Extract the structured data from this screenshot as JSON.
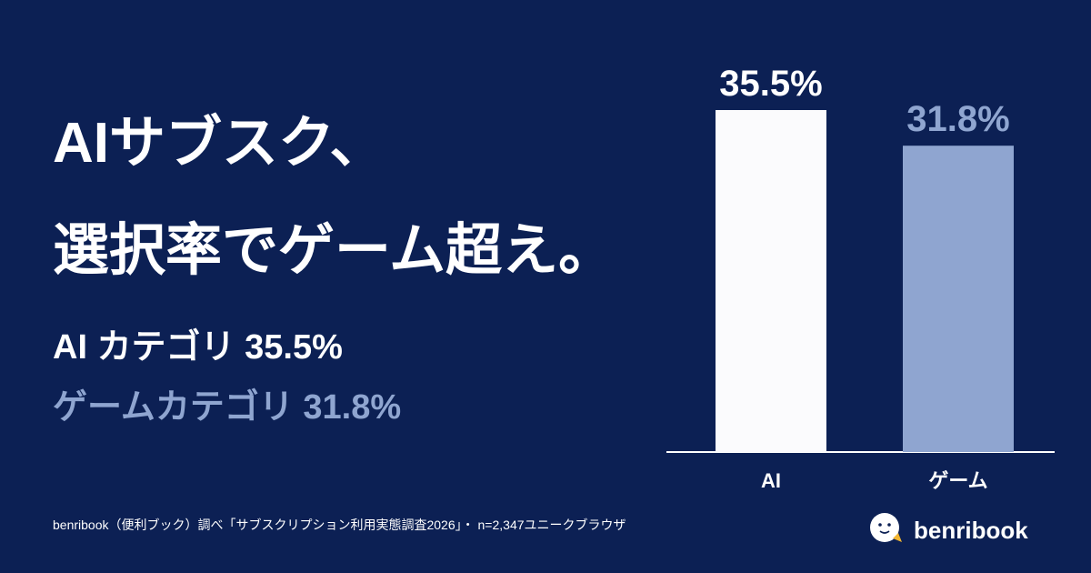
{
  "chart_data": {
    "type": "bar",
    "title_lines": [
      "AIサブスク、",
      "選択率でゲーム超え。"
    ],
    "highlights": [
      {
        "text": "AI カテゴリ 35.5%",
        "color": "#ffffff"
      },
      {
        "text": "ゲームカテゴリ 31.8%",
        "color": "#8fa5d0"
      }
    ],
    "categories": [
      "AI",
      "ゲーム"
    ],
    "values": [
      35.5,
      31.8
    ],
    "value_labels": [
      "35.5%",
      "31.8%"
    ],
    "colors": [
      "#fbfbfd",
      "#8fa5d0"
    ],
    "source": "benribook（便利ブック）調べ「サブスクリプション利用実態調査2026」・ n=2,347ユニークブラウザ",
    "brand": "benribook"
  }
}
